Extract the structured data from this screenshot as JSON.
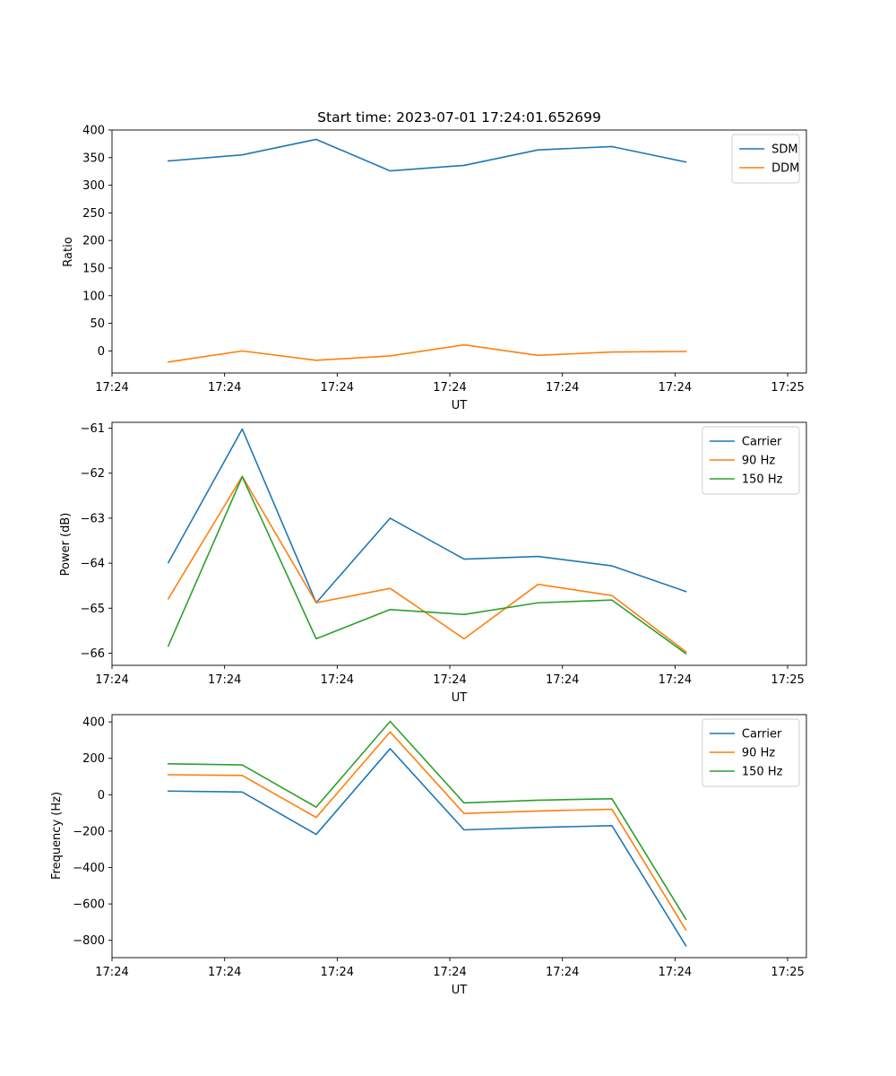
{
  "chart_data": [
    {
      "type": "line",
      "title": "Start time: 2023-07-01 17:24:01.652699",
      "xlabel": "UT",
      "ylabel": "Ratio",
      "ylim": [
        -40,
        400
      ],
      "yticks": [
        0,
        50,
        100,
        150,
        200,
        250,
        300,
        350,
        400
      ],
      "ytick_labels": [
        "0",
        "50",
        "100",
        "150",
        "200",
        "250",
        "300",
        "350",
        "400"
      ],
      "xlim": [
        0,
        18.5
      ],
      "xticks": [
        0,
        3,
        6,
        9,
        12,
        15,
        18
      ],
      "xtick_labels": [
        "17:24",
        "17:24",
        "17:24",
        "17:24",
        "17:24",
        "17:24",
        "17:25"
      ],
      "x": [
        1.5,
        3.47,
        5.44,
        7.41,
        9.38,
        11.35,
        13.32,
        15.29
      ],
      "legend_loc": "top-right",
      "series": [
        {
          "name": "SDM",
          "color": "#1f77b4",
          "values": [
            344,
            355,
            383,
            326,
            336,
            364,
            370,
            342
          ]
        },
        {
          "name": "DDM",
          "color": "#ff7f0e",
          "values": [
            -20,
            0,
            -17,
            -9,
            11,
            -8,
            -2,
            -1
          ]
        }
      ]
    },
    {
      "type": "line",
      "title": "",
      "xlabel": "UT",
      "ylabel": "Power (dB)",
      "ylim": [
        -66.27,
        -60.87
      ],
      "yticks": [
        -66,
        -65,
        -64,
        -63,
        -62,
        -61
      ],
      "ytick_labels": [
        "−66",
        "−65",
        "−64",
        "−63",
        "−62",
        "−61"
      ],
      "xlim": [
        0,
        18.5
      ],
      "xticks": [
        0,
        3,
        6,
        9,
        12,
        15,
        18
      ],
      "xtick_labels": [
        "17:24",
        "17:24",
        "17:24",
        "17:24",
        "17:24",
        "17:24",
        "17:25"
      ],
      "x": [
        1.5,
        3.47,
        5.44,
        7.41,
        9.38,
        11.35,
        13.32,
        15.29
      ],
      "legend_loc": "top-right",
      "series": [
        {
          "name": "Carrier",
          "color": "#1f77b4",
          "values": [
            -63.99,
            -61.02,
            -64.88,
            -63.0,
            -63.91,
            -63.85,
            -64.06,
            -64.63
          ]
        },
        {
          "name": "90 Hz",
          "color": "#ff7f0e",
          "values": [
            -64.79,
            -62.07,
            -64.88,
            -64.56,
            -65.68,
            -64.47,
            -64.72,
            -65.97
          ]
        },
        {
          "name": "150 Hz",
          "color": "#2ca02c",
          "values": [
            -65.84,
            -62.08,
            -65.68,
            -65.03,
            -65.14,
            -64.88,
            -64.82,
            -66.01
          ]
        }
      ]
    },
    {
      "type": "line",
      "title": "",
      "xlabel": "UT",
      "ylabel": "Frequency (Hz)",
      "ylim": [
        -895,
        440
      ],
      "yticks": [
        -800,
        -600,
        -400,
        -200,
        0,
        200,
        400
      ],
      "ytick_labels": [
        "−800",
        "−600",
        "−400",
        "−200",
        "0",
        "200",
        "400"
      ],
      "xlim": [
        0,
        18.5
      ],
      "xticks": [
        0,
        3,
        6,
        9,
        12,
        15,
        18
      ],
      "xtick_labels": [
        "17:24",
        "17:24",
        "17:24",
        "17:24",
        "17:24",
        "17:24",
        "17:25"
      ],
      "x": [
        1.5,
        3.47,
        5.44,
        7.41,
        9.38,
        11.35,
        13.32,
        15.29
      ],
      "legend_loc": "top-right",
      "series": [
        {
          "name": "Carrier",
          "color": "#1f77b4",
          "values": [
            20,
            15,
            -218,
            253,
            -193,
            -180,
            -170,
            -830
          ]
        },
        {
          "name": "90 Hz",
          "color": "#ff7f0e",
          "values": [
            110,
            106,
            -125,
            345,
            -103,
            -89,
            -80,
            -743
          ]
        },
        {
          "name": "150 Hz",
          "color": "#2ca02c",
          "values": [
            170,
            164,
            -68,
            403,
            -45,
            -30,
            -22,
            -684
          ]
        }
      ]
    }
  ]
}
